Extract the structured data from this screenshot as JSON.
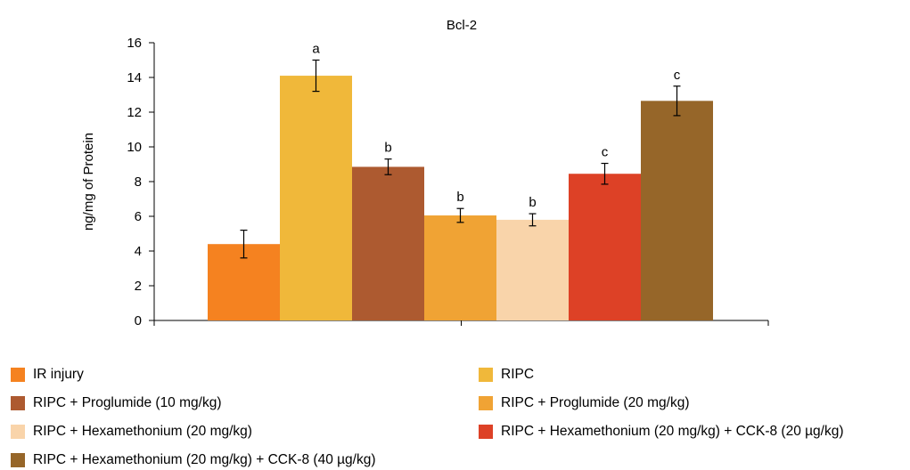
{
  "chart_data": {
    "type": "bar",
    "title": "Bcl-2",
    "xlabel": "",
    "ylabel": "ng/mg of Protein",
    "ylim": [
      0,
      16
    ],
    "yticks": [
      "0",
      "2",
      "4",
      "6",
      "8",
      "10",
      "12",
      "14",
      "16"
    ],
    "grid": false,
    "legend_position": "bottom",
    "series": [
      {
        "name": "IR injury",
        "value": 4.4,
        "error": 0.8,
        "letter": "",
        "color": "#f58220"
      },
      {
        "name": "RIPC",
        "value": 14.1,
        "error": 0.9,
        "letter": "a",
        "color": "#f0b83a"
      },
      {
        "name": "RIPC + Proglumide (10 mg/kg)",
        "value": 8.85,
        "error": 0.45,
        "letter": "b",
        "color": "#ad5a30"
      },
      {
        "name": "RIPC + Proglumide (20 mg/kg)",
        "value": 6.05,
        "error": 0.4,
        "letter": "b",
        "color": "#f0a334"
      },
      {
        "name": "RIPC + Hexamethonium (20 mg/kg)",
        "value": 5.8,
        "error": 0.35,
        "letter": "b",
        "color": "#f9d4aa"
      },
      {
        "name": "RIPC + Hexamethonium (20 mg/kg) + CCK-8 (20 µg/kg)",
        "value": 8.45,
        "error": 0.6,
        "letter": "c",
        "color": "#dd4126"
      },
      {
        "name": "RIPC + Hexamethonium (20 mg/kg) + CCK-8 (40 µg/kg)",
        "value": 12.65,
        "error": 0.85,
        "letter": "c",
        "color": "#966629"
      }
    ]
  }
}
